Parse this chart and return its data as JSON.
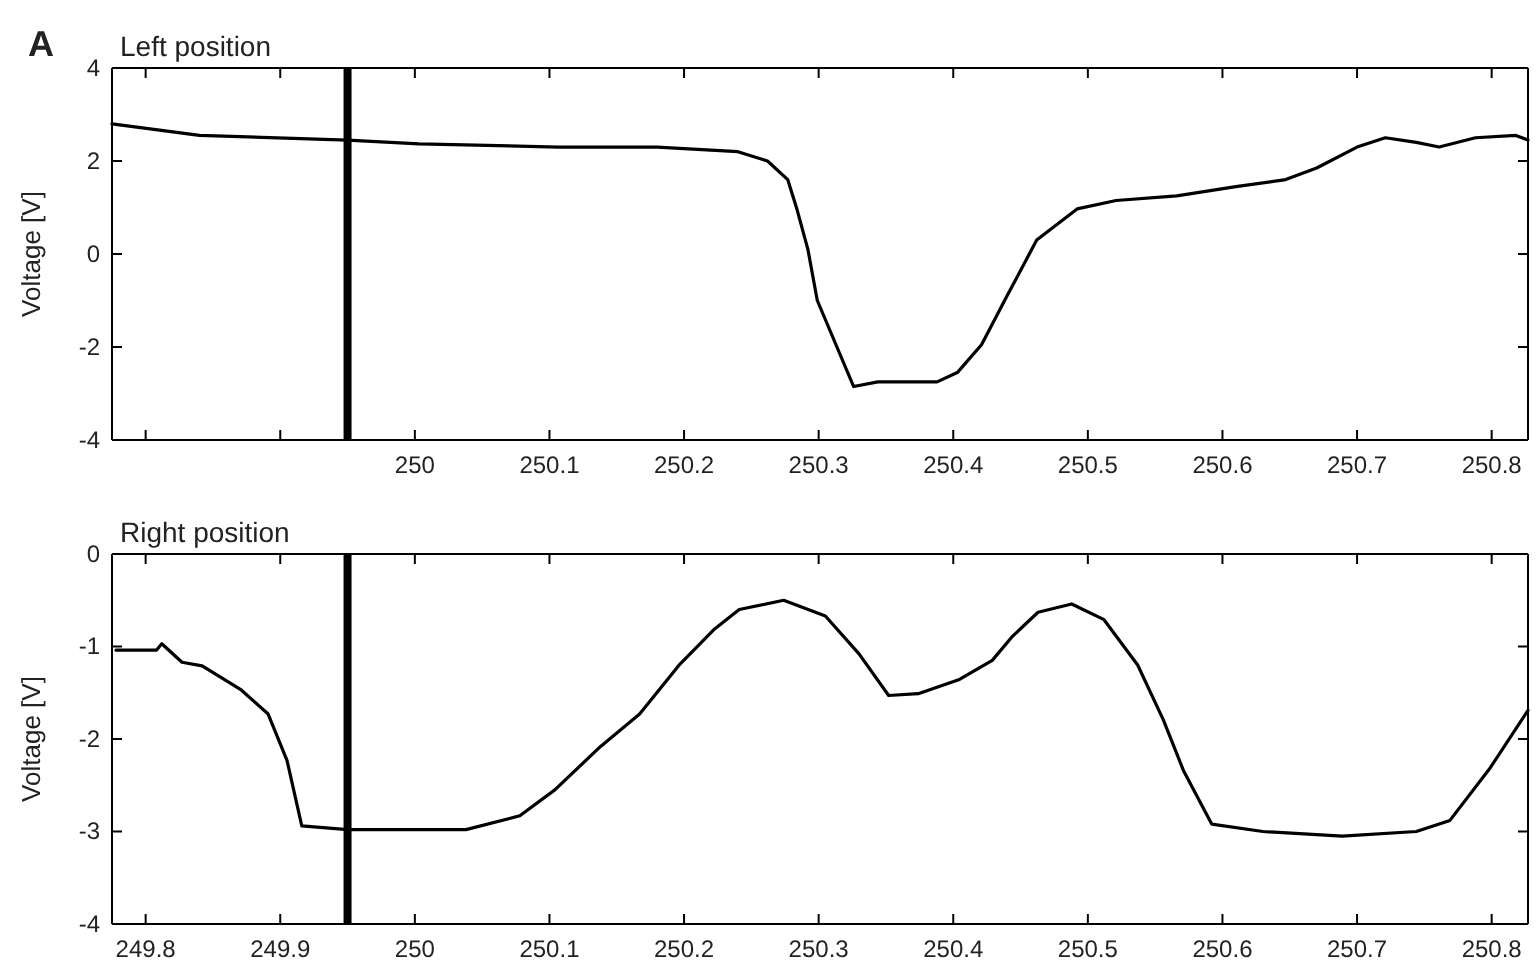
{
  "chart_data": [
    {
      "type": "line",
      "title": "Left position",
      "ylabel": "Voltage [V]",
      "annotations": [
        "A"
      ],
      "grid": false,
      "marker": "none",
      "line_style": "solid",
      "xlim": [
        249.775,
        250.827
      ],
      "ylim": [
        -4,
        4
      ],
      "xticks": [
        {
          "value": 249.8,
          "label": null
        },
        {
          "value": 249.9,
          "label": null
        },
        250,
        250.1,
        250.2,
        250.3,
        250.4,
        250.5,
        250.6,
        250.7,
        250.8
      ],
      "yticks": [
        -4,
        -2,
        0,
        2,
        4
      ],
      "ref_lines": [
        {
          "axis": "x",
          "value": 249.95,
          "label": null,
          "color": "#000000"
        }
      ],
      "series": [
        {
          "color": "#000000",
          "x": [
            249.775,
            249.84,
            249.95,
            250.003,
            250.107,
            250.18,
            250.24,
            250.262,
            250.277,
            250.284,
            250.292,
            250.299,
            250.326,
            250.344,
            250.388,
            250.403,
            250.421,
            250.44,
            250.462,
            250.492,
            250.521,
            250.566,
            250.61,
            250.647,
            250.67,
            250.7,
            250.721,
            250.744,
            250.761,
            250.788,
            250.818,
            250.827
          ],
          "values": [
            2.8,
            2.55,
            2.45,
            2.37,
            2.3,
            2.3,
            2.2,
            2.0,
            1.6,
            0.95,
            0.1,
            -1.0,
            -2.85,
            -2.75,
            -2.75,
            -2.55,
            -1.95,
            -0.9,
            0.3,
            0.97,
            1.15,
            1.25,
            1.45,
            1.6,
            1.85,
            2.3,
            2.5,
            2.4,
            2.3,
            2.5,
            2.55,
            2.45
          ]
        }
      ]
    },
    {
      "type": "line",
      "title": "Right position",
      "ylabel": "Voltage [V]",
      "grid": false,
      "marker": "none",
      "line_style": "solid",
      "xlim": [
        249.775,
        250.827
      ],
      "ylim": [
        -4,
        0
      ],
      "xticks": [
        249.8,
        249.9,
        250,
        250.1,
        250.2,
        250.3,
        250.4,
        250.5,
        250.6,
        250.7,
        250.8
      ],
      "yticks": [
        -4,
        -3,
        -2,
        -1,
        0
      ],
      "ref_lines": [
        {
          "axis": "x",
          "value": 249.95,
          "label": null,
          "color": "#000000"
        }
      ],
      "series": [
        {
          "color": "#000000",
          "x": [
            249.778,
            249.808,
            249.812,
            249.827,
            249.842,
            249.871,
            249.891,
            249.905,
            249.916,
            249.95,
            250.038,
            250.078,
            250.104,
            250.138,
            250.167,
            250.197,
            250.222,
            250.241,
            250.274,
            250.305,
            250.33,
            250.352,
            250.374,
            250.404,
            250.429,
            250.444,
            250.463,
            250.488,
            250.512,
            250.537,
            250.556,
            250.571,
            250.592,
            250.63,
            250.689,
            250.744,
            250.769,
            250.799,
            250.827
          ],
          "values": [
            -1.04,
            -1.04,
            -0.97,
            -1.17,
            -1.21,
            -1.47,
            -1.73,
            -2.23,
            -2.94,
            -2.98,
            -2.98,
            -2.83,
            -2.55,
            -2.08,
            -1.73,
            -1.19,
            -0.82,
            -0.6,
            -0.5,
            -0.67,
            -1.08,
            -1.53,
            -1.51,
            -1.36,
            -1.15,
            -0.89,
            -0.63,
            -0.54,
            -0.71,
            -1.2,
            -1.79,
            -2.34,
            -2.92,
            -3.0,
            -3.05,
            -3.0,
            -2.88,
            -2.31,
            -1.69
          ]
        }
      ]
    }
  ]
}
